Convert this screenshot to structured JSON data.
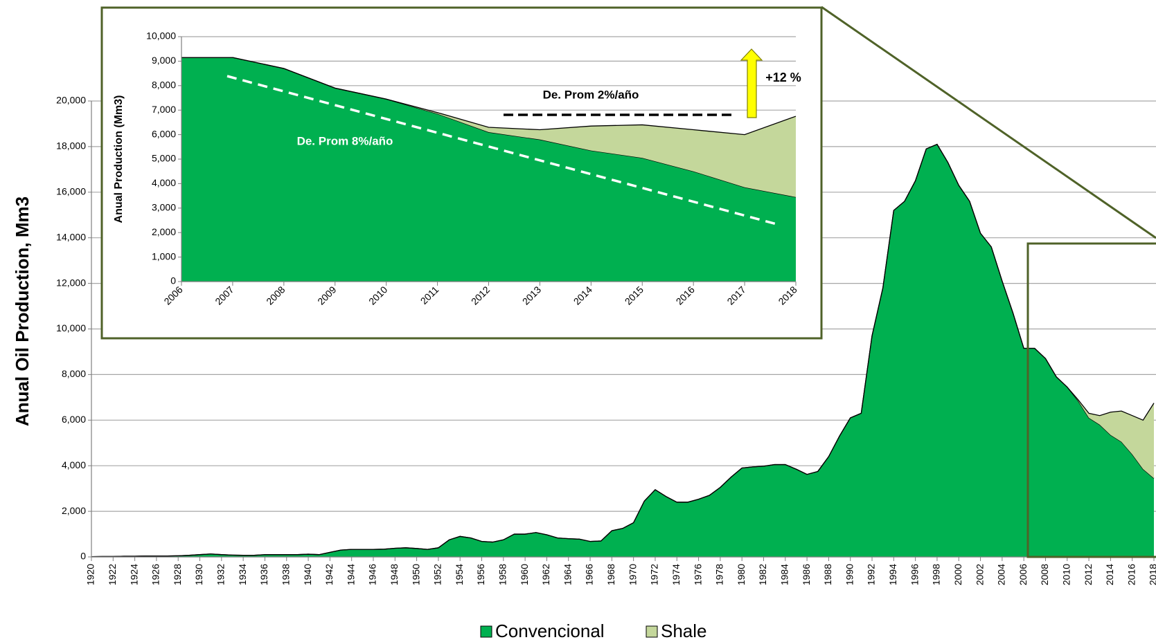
{
  "chart_data": [
    {
      "type": "area",
      "stacked": true,
      "y_label": "Anual Oil Production, Mm3",
      "x": [
        1920,
        1921,
        1922,
        1923,
        1924,
        1925,
        1926,
        1927,
        1928,
        1929,
        1930,
        1931,
        1932,
        1933,
        1934,
        1935,
        1936,
        1937,
        1938,
        1939,
        1940,
        1941,
        1942,
        1943,
        1944,
        1945,
        1946,
        1947,
        1948,
        1949,
        1950,
        1951,
        1952,
        1953,
        1954,
        1955,
        1956,
        1957,
        1958,
        1959,
        1960,
        1961,
        1962,
        1963,
        1964,
        1965,
        1966,
        1967,
        1968,
        1969,
        1970,
        1971,
        1972,
        1973,
        1974,
        1975,
        1976,
        1977,
        1978,
        1979,
        1980,
        1981,
        1982,
        1983,
        1984,
        1985,
        1986,
        1987,
        1988,
        1989,
        1990,
        1991,
        1992,
        1993,
        1994,
        1995,
        1996,
        1997,
        1998,
        1999,
        2000,
        2001,
        2002,
        2003,
        2004,
        2005,
        2006,
        2007,
        2008,
        2009,
        2010,
        2011,
        2012,
        2013,
        2014,
        2015,
        2016,
        2017,
        2018
      ],
      "series": [
        {
          "name": "Convencional",
          "color": "#00b050",
          "values": [
            10,
            20,
            20,
            30,
            30,
            40,
            40,
            40,
            50,
            70,
            100,
            130,
            100,
            80,
            70,
            70,
            100,
            100,
            100,
            100,
            120,
            100,
            200,
            300,
            330,
            330,
            330,
            340,
            380,
            400,
            370,
            330,
            400,
            750,
            900,
            830,
            680,
            650,
            750,
            1000,
            1000,
            1070,
            970,
            830,
            800,
            780,
            680,
            700,
            1150,
            1250,
            1500,
            2450,
            2950,
            2650,
            2400,
            2400,
            2530,
            2700,
            3050,
            3500,
            3900,
            3950,
            3980,
            4050,
            4050,
            3850,
            3620,
            3750,
            4400,
            5300,
            6100,
            6300,
            9700,
            11800,
            15200,
            15600,
            16500,
            17900,
            18100,
            17300,
            16300,
            15600,
            14200,
            13600,
            12100,
            10700,
            9150,
            9150,
            8700,
            7900,
            7450,
            6850,
            6100,
            5800,
            5350,
            5050,
            4500,
            3850,
            3450
          ]
        },
        {
          "name": "Shale",
          "color": "#c4d79b",
          "values": [
            0,
            0,
            0,
            0,
            0,
            0,
            0,
            0,
            0,
            0,
            0,
            0,
            0,
            0,
            0,
            0,
            0,
            0,
            0,
            0,
            0,
            0,
            0,
            0,
            0,
            0,
            0,
            0,
            0,
            0,
            0,
            0,
            0,
            0,
            0,
            0,
            0,
            0,
            0,
            0,
            0,
            0,
            0,
            0,
            0,
            0,
            0,
            0,
            0,
            0,
            0,
            0,
            0,
            0,
            0,
            0,
            0,
            0,
            0,
            0,
            0,
            0,
            0,
            0,
            0,
            0,
            0,
            0,
            0,
            0,
            0,
            0,
            0,
            0,
            0,
            0,
            0,
            0,
            0,
            0,
            0,
            0,
            0,
            0,
            0,
            0,
            0,
            0,
            0,
            0,
            0,
            50,
            200,
            400,
            1000,
            1350,
            1700,
            2150,
            3300
          ]
        }
      ],
      "xlim": [
        1920,
        2018
      ],
      "xticks": [
        1920,
        1922,
        1924,
        1926,
        1928,
        1930,
        1932,
        1934,
        1936,
        1938,
        1940,
        1942,
        1944,
        1946,
        1948,
        1950,
        1952,
        1954,
        1956,
        1958,
        1960,
        1962,
        1964,
        1966,
        1968,
        1970,
        1972,
        1974,
        1976,
        1978,
        1980,
        1982,
        1984,
        1986,
        1988,
        1990,
        1992,
        1994,
        1996,
        1998,
        2000,
        2002,
        2004,
        2006,
        2008,
        2010,
        2012,
        2014,
        2016,
        2018
      ],
      "ylim": [
        0,
        20000
      ],
      "yticks": [
        0,
        {
          "value": 2000,
          "label": "2,000"
        },
        {
          "value": 4000,
          "label": "4,000"
        },
        {
          "value": 6000,
          "label": "6,000"
        },
        {
          "value": 8000,
          "label": "8,000"
        },
        {
          "value": 10000,
          "label": "10,000"
        },
        {
          "value": 12000,
          "label": "12,000"
        },
        {
          "value": 14000,
          "label": "14,000"
        },
        {
          "value": 16000,
          "label": "16,000"
        },
        {
          "value": 18000,
          "label": "18,000"
        },
        {
          "value": 20000,
          "label": "20,000"
        }
      ],
      "grid": true,
      "legend": "bottom"
    },
    {
      "type": "area",
      "stacked": true,
      "y_label": "Anual Production (Mm3)",
      "annotations": [
        "De. Prom 2%/año",
        "De. Prom 8%/año",
        "+12 %"
      ],
      "x": [
        2006,
        2007,
        2008,
        2009,
        2010,
        2011,
        2012,
        2013,
        2014,
        2015,
        2016,
        2017,
        2018
      ],
      "series": [
        {
          "color": "#00b050",
          "values": [
            9150,
            9150,
            8700,
            7900,
            7450,
            6850,
            6100,
            5800,
            5350,
            5050,
            4500,
            3850,
            3450
          ]
        },
        {
          "color": "#c4d79b",
          "values": [
            0,
            0,
            0,
            0,
            0,
            50,
            200,
            400,
            1000,
            1350,
            1700,
            2150,
            3300
          ]
        }
      ],
      "xlim": [
        2006,
        2018
      ],
      "xticks": [
        2006,
        2007,
        2008,
        2009,
        2010,
        2011,
        2012,
        2013,
        2014,
        2015,
        2016,
        2017,
        2018
      ],
      "ylim": [
        0,
        10000
      ],
      "yticks": [
        0,
        {
          "value": 1000,
          "label": "1,000"
        },
        {
          "value": 2000,
          "label": "2,000"
        },
        {
          "value": 3000,
          "label": "3,000"
        },
        {
          "value": 4000,
          "label": "4,000"
        },
        {
          "value": 5000,
          "label": "5,000"
        },
        {
          "value": 6000,
          "label": "6,000"
        },
        {
          "value": 7000,
          "label": "7,000"
        },
        {
          "value": 8000,
          "label": "8,000"
        },
        {
          "value": 9000,
          "label": "9,000"
        },
        {
          "value": 10000,
          "label": "10,000"
        }
      ],
      "grid": true
    }
  ]
}
